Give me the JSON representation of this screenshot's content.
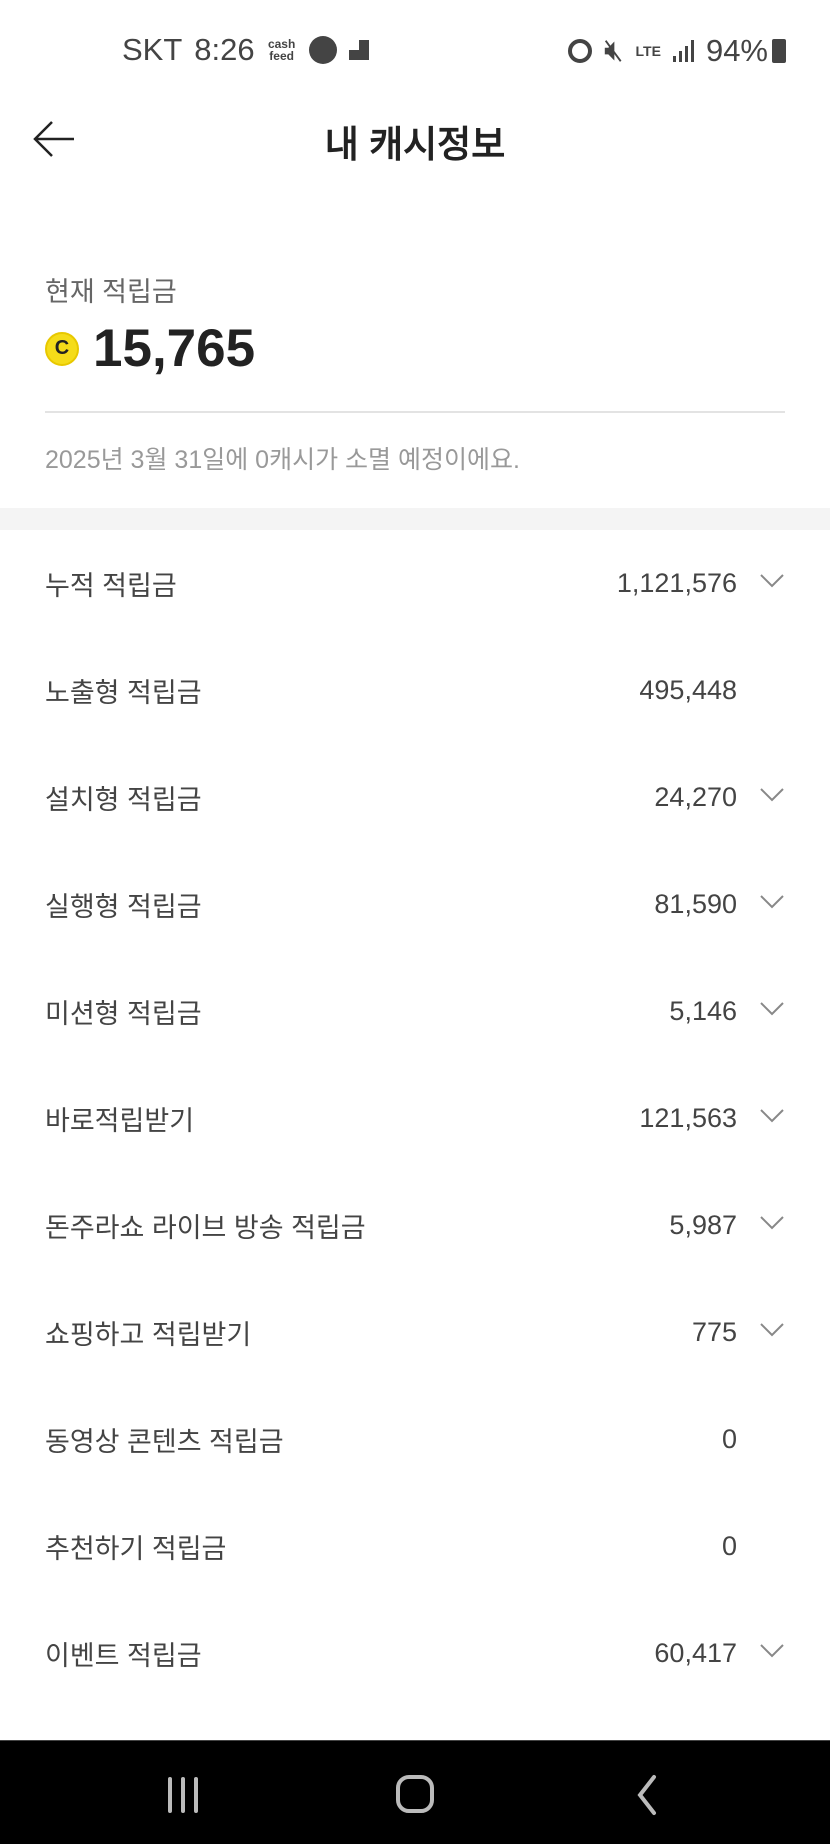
{
  "status_bar": {
    "carrier": "SKT",
    "time": "8:26",
    "app_icon_text": "cash feed",
    "network": "LTE",
    "battery": "94%"
  },
  "header": {
    "title": "내 캐시정보"
  },
  "summary": {
    "label": "현재 적립금",
    "amount": "15,765",
    "coin_symbol": "C",
    "coin_color": "#f5dc19",
    "expiry_note": "2025년 3월 31일에 0캐시가 소멸 예정이에요."
  },
  "items": [
    {
      "label": "누적 적립금",
      "value": "1,121,576",
      "expandable": true
    },
    {
      "label": "노출형 적립금",
      "value": "495,448",
      "expandable": false
    },
    {
      "label": "설치형 적립금",
      "value": "24,270",
      "expandable": true
    },
    {
      "label": "실행형 적립금",
      "value": "81,590",
      "expandable": true
    },
    {
      "label": "미션형 적립금",
      "value": "5,146",
      "expandable": true
    },
    {
      "label": "바로적립받기",
      "value": "121,563",
      "expandable": true
    },
    {
      "label": "돈주라쇼 라이브 방송 적립금",
      "value": "5,987",
      "expandable": true
    },
    {
      "label": "쇼핑하고 적립받기",
      "value": "775",
      "expandable": true
    },
    {
      "label": "동영상 콘텐츠 적립금",
      "value": "0",
      "expandable": false
    },
    {
      "label": "추천하기 적립금",
      "value": "0",
      "expandable": false
    },
    {
      "label": "이벤트 적립금",
      "value": "60,417",
      "expandable": true
    }
  ]
}
